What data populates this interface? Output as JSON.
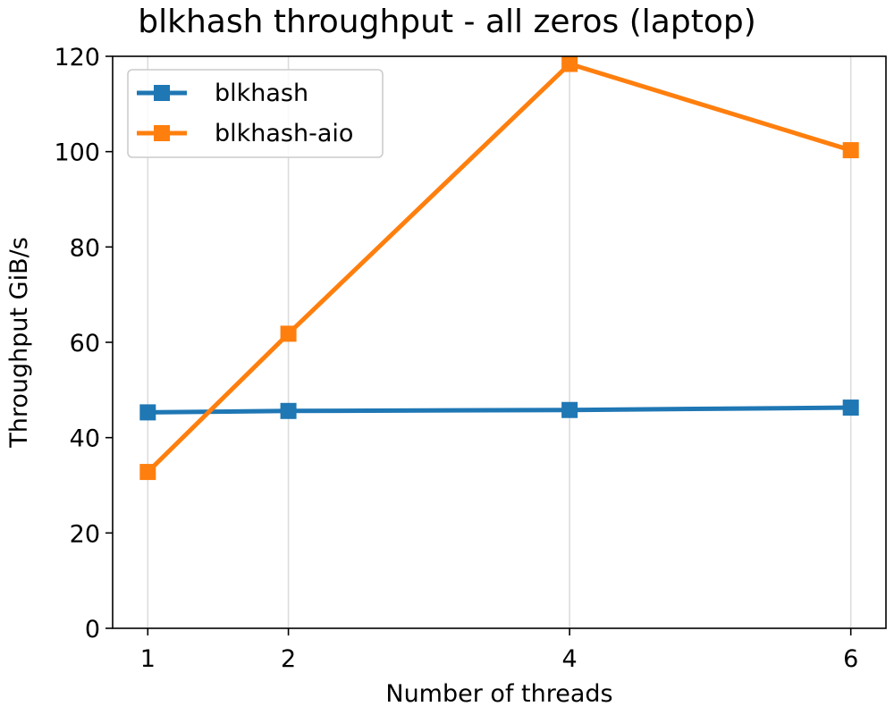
{
  "chart_data": {
    "type": "line",
    "title": "blkhash throughput - all zeros (laptop)",
    "xlabel": "Number of threads",
    "ylabel": "Throughput GiB/s",
    "x": [
      1,
      2,
      4,
      6
    ],
    "xticks": [
      1,
      2,
      4,
      6
    ],
    "xlim": [
      0.75,
      6.25
    ],
    "yticks": [
      0,
      20,
      40,
      60,
      80,
      100,
      120
    ],
    "ylim": [
      0,
      120
    ],
    "grid": "x-only",
    "legend_position": "upper left",
    "series": [
      {
        "name": "blkhash",
        "color": "#1f77b4",
        "marker": "square",
        "values": [
          45.3,
          45.6,
          45.8,
          46.3
        ]
      },
      {
        "name": "blkhash-aio",
        "color": "#ff7f0e",
        "marker": "square",
        "values": [
          32.8,
          61.8,
          118.4,
          100.3
        ]
      }
    ]
  }
}
